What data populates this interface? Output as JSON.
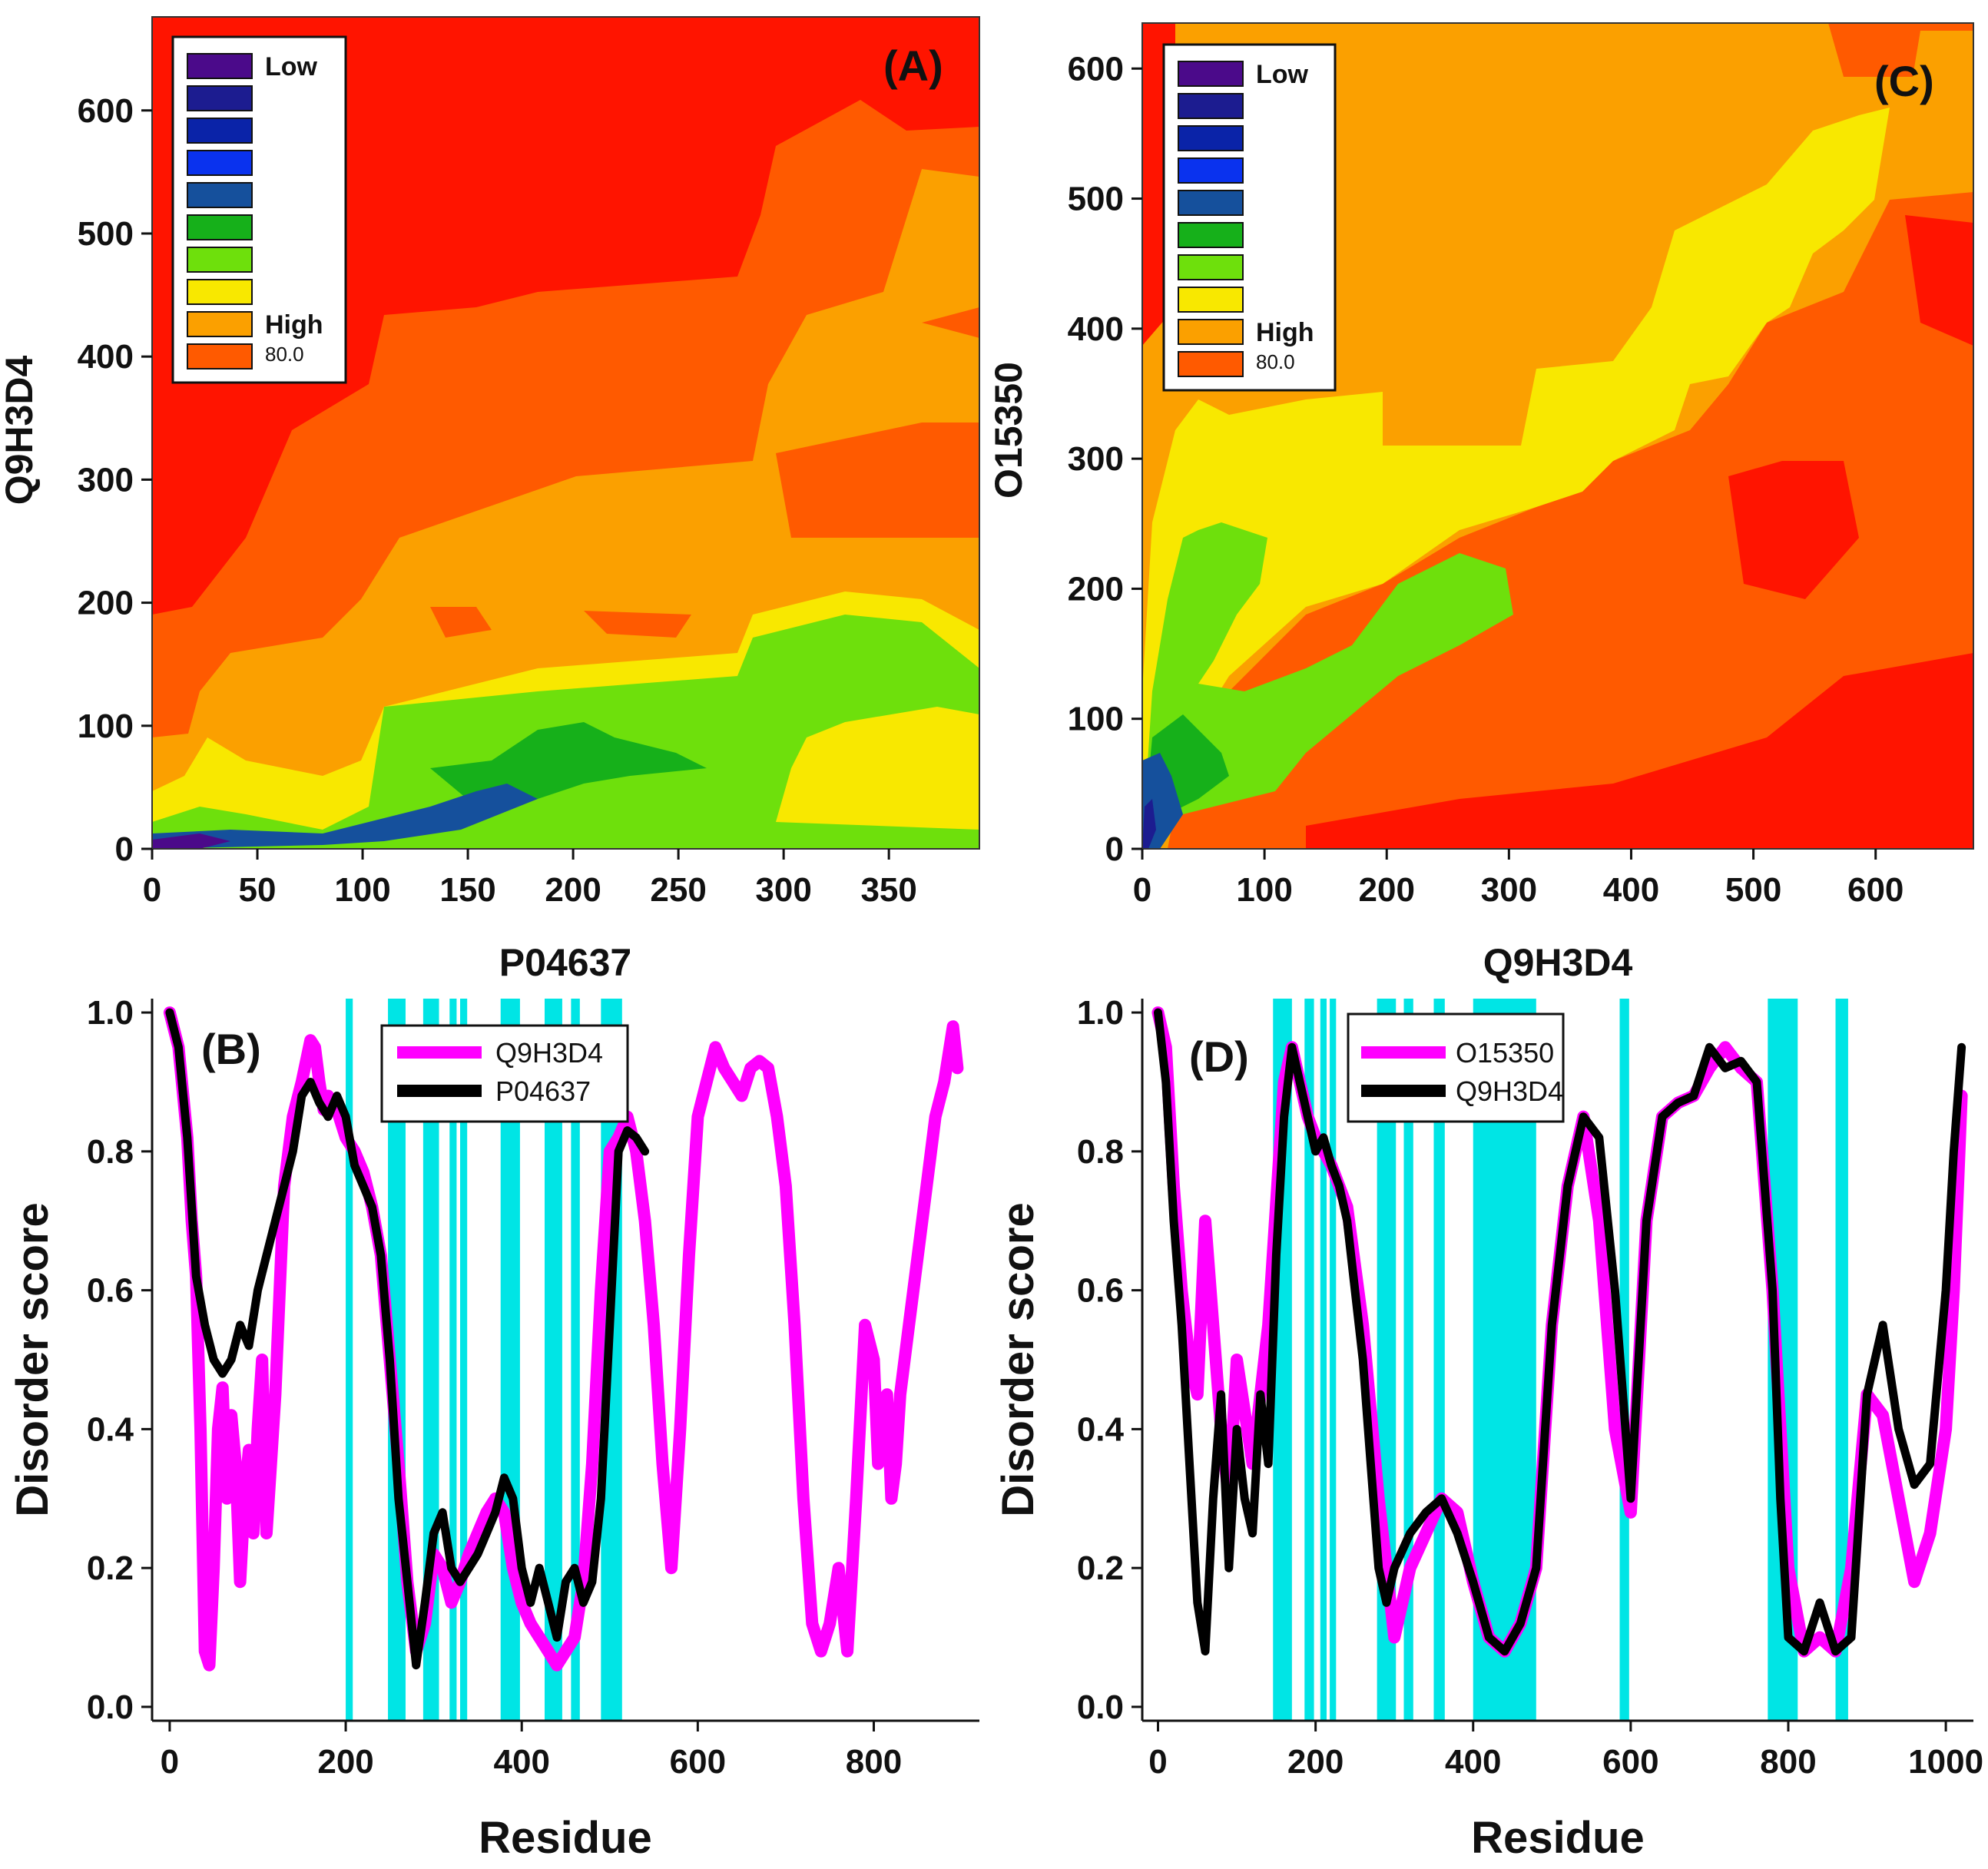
{
  "chart_data": [
    {
      "id": "A",
      "type": "heatmap",
      "panel_label": "(A)",
      "xlabel": "P04637",
      "ylabel": "Q9H3D4",
      "xlim": [
        0,
        393
      ],
      "ylim": [
        0,
        676
      ],
      "xticks": [
        0,
        50,
        100,
        150,
        200,
        250,
        300,
        350
      ],
      "yticks": [
        0,
        100,
        200,
        300,
        400,
        500,
        600
      ],
      "legend": [
        {
          "label": "Low",
          "color": "#4b0a8a"
        },
        {
          "label": "",
          "color": "#1c1c90"
        },
        {
          "label": "",
          "color": "#0a23a8"
        },
        {
          "label": "",
          "color": "#0a32ee"
        },
        {
          "label": "",
          "color": "#15509c"
        },
        {
          "label": "",
          "color": "#16b01a"
        },
        {
          "label": "",
          "color": "#6ee00c"
        },
        {
          "label": "",
          "color": "#f8e800"
        },
        {
          "label": "High",
          "color": "#fba000"
        },
        {
          "label": "80.0",
          "color": "#ff5a00"
        }
      ],
      "contours": [
        {
          "level": "orange",
          "color": "#fba000",
          "boundary": [
            [
              0,
              85
            ],
            [
              40,
              90
            ],
            [
              70,
              170
            ],
            [
              160,
              190
            ],
            [
              300,
              310
            ],
            [
              393,
              330
            ]
          ]
        },
        {
          "level": "yellow",
          "color": "#f8e800",
          "boundary": [
            [
              0,
              45
            ],
            [
              60,
              60
            ],
            [
              110,
              110
            ],
            [
              300,
              190
            ],
            [
              393,
              200
            ]
          ]
        },
        {
          "level": "green",
          "color": "#6ee00c",
          "boundary": [
            [
              0,
              25
            ],
            [
              100,
              20
            ],
            [
              120,
              115
            ],
            [
              300,
              185
            ],
            [
              393,
              140
            ]
          ]
        },
        {
          "level": "blue",
          "color": "#15509c",
          "boundary": [
            [
              0,
              10
            ],
            [
              100,
              8
            ],
            [
              150,
              45
            ],
            [
              180,
              40
            ]
          ]
        }
      ]
    },
    {
      "id": "C",
      "type": "heatmap",
      "panel_label": "(C)",
      "xlabel": "Q9H3D4",
      "ylabel": "O15350",
      "xlim": [
        0,
        680
      ],
      "ylim": [
        0,
        635
      ],
      "xticks": [
        0,
        100,
        200,
        300,
        400,
        500,
        600
      ],
      "yticks": [
        0,
        100,
        200,
        300,
        400,
        500,
        600
      ],
      "legend": [
        {
          "label": "Low",
          "color": "#4b0a8a"
        },
        {
          "label": "",
          "color": "#1c1c90"
        },
        {
          "label": "",
          "color": "#0a23a8"
        },
        {
          "label": "",
          "color": "#0a32ee"
        },
        {
          "label": "",
          "color": "#15509c"
        },
        {
          "label": "",
          "color": "#16b01a"
        },
        {
          "label": "",
          "color": "#6ee00c"
        },
        {
          "label": "",
          "color": "#f8e800"
        },
        {
          "label": "High",
          "color": "#fba000"
        },
        {
          "label": "80.0",
          "color": "#ff5a00"
        }
      ]
    },
    {
      "id": "B",
      "type": "line",
      "panel_label": "(B)",
      "xlabel": "Residue",
      "ylabel": "Disorder score",
      "xlim": [
        -20,
        920
      ],
      "ylim": [
        -0.02,
        1.02
      ],
      "xticks": [
        0,
        200,
        400,
        600,
        800
      ],
      "yticks": [
        "0.0",
        "0.2",
        "0.4",
        "0.6",
        "0.8",
        "1.0"
      ],
      "highlight_regions": [
        [
          200,
          208
        ],
        [
          248,
          268
        ],
        [
          288,
          306
        ],
        [
          318,
          326
        ],
        [
          330,
          338
        ],
        [
          376,
          398
        ],
        [
          426,
          446
        ],
        [
          456,
          466
        ],
        [
          490,
          514
        ]
      ],
      "series": [
        {
          "name": "Q9H3D4",
          "color": "#ff00ff",
          "x": [
            0,
            10,
            20,
            25,
            30,
            35,
            40,
            45,
            50,
            55,
            60,
            65,
            70,
            75,
            80,
            85,
            90,
            95,
            100,
            105,
            110,
            115,
            120,
            125,
            130,
            135,
            140,
            150,
            160,
            165,
            170,
            175,
            180,
            190,
            200,
            210,
            220,
            230,
            240,
            250,
            260,
            270,
            280,
            290,
            300,
            310,
            320,
            330,
            340,
            350,
            360,
            370,
            380,
            390,
            400,
            410,
            420,
            430,
            440,
            450,
            460,
            470,
            480,
            490,
            500,
            510,
            520,
            530,
            540,
            550,
            560,
            570,
            580,
            590,
            600,
            610,
            620,
            630,
            640,
            650,
            660,
            670,
            680,
            690,
            700,
            710,
            720,
            730,
            740,
            750,
            760,
            770,
            780,
            790,
            800,
            805,
            810,
            815,
            820,
            825,
            830,
            835,
            840,
            850,
            860,
            870,
            880,
            890,
            895
          ],
          "y": [
            1.0,
            0.95,
            0.82,
            0.7,
            0.62,
            0.4,
            0.08,
            0.06,
            0.2,
            0.4,
            0.46,
            0.3,
            0.42,
            0.35,
            0.18,
            0.3,
            0.37,
            0.25,
            0.4,
            0.5,
            0.25,
            0.35,
            0.45,
            0.6,
            0.75,
            0.8,
            0.85,
            0.9,
            0.96,
            0.95,
            0.9,
            0.86,
            0.88,
            0.86,
            0.82,
            0.8,
            0.77,
            0.72,
            0.65,
            0.5,
            0.35,
            0.18,
            0.08,
            0.12,
            0.22,
            0.2,
            0.15,
            0.18,
            0.22,
            0.25,
            0.28,
            0.3,
            0.28,
            0.2,
            0.15,
            0.12,
            0.1,
            0.08,
            0.06,
            0.08,
            0.1,
            0.18,
            0.35,
            0.6,
            0.8,
            0.82,
            0.85,
            0.8,
            0.7,
            0.55,
            0.35,
            0.2,
            0.4,
            0.65,
            0.85,
            0.9,
            0.95,
            0.92,
            0.9,
            0.88,
            0.92,
            0.93,
            0.92,
            0.85,
            0.75,
            0.55,
            0.3,
            0.12,
            0.08,
            0.12,
            0.2,
            0.08,
            0.3,
            0.55,
            0.5,
            0.35,
            0.4,
            0.45,
            0.3,
            0.35,
            0.45,
            0.5,
            0.55,
            0.65,
            0.75,
            0.85,
            0.9,
            0.98,
            0.92
          ]
        },
        {
          "name": "P04637",
          "color": "#000000",
          "x": [
            0,
            10,
            20,
            30,
            40,
            50,
            60,
            70,
            80,
            90,
            100,
            110,
            120,
            130,
            140,
            150,
            160,
            170,
            180,
            190,
            200,
            210,
            220,
            230,
            240,
            250,
            260,
            270,
            280,
            290,
            300,
            310,
            320,
            330,
            340,
            350,
            360,
            370,
            380,
            390,
            400,
            410,
            420,
            430,
            440,
            450,
            460,
            470,
            480,
            490,
            500,
            510,
            520,
            530,
            540
          ],
          "y": [
            1.0,
            0.95,
            0.82,
            0.62,
            0.55,
            0.5,
            0.48,
            0.5,
            0.55,
            0.52,
            0.6,
            0.65,
            0.7,
            0.75,
            0.8,
            0.88,
            0.9,
            0.87,
            0.85,
            0.88,
            0.85,
            0.78,
            0.75,
            0.72,
            0.65,
            0.5,
            0.3,
            0.18,
            0.06,
            0.15,
            0.25,
            0.28,
            0.2,
            0.18,
            0.2,
            0.22,
            0.25,
            0.28,
            0.33,
            0.3,
            0.2,
            0.15,
            0.2,
            0.15,
            0.1,
            0.18,
            0.2,
            0.15,
            0.18,
            0.3,
            0.55,
            0.8,
            0.83,
            0.82,
            0.8
          ]
        }
      ]
    },
    {
      "id": "D",
      "type": "line",
      "panel_label": "(D)",
      "xlabel": "Residue",
      "ylabel": "Disorder score",
      "xlim": [
        -20,
        1035
      ],
      "ylim": [
        -0.02,
        1.02
      ],
      "xticks": [
        0,
        200,
        400,
        600,
        800,
        1000
      ],
      "yticks": [
        "0.0",
        "0.2",
        "0.4",
        "0.6",
        "0.8",
        "1.0"
      ],
      "highlight_regions": [
        [
          146,
          170
        ],
        [
          186,
          198
        ],
        [
          206,
          214
        ],
        [
          218,
          226
        ],
        [
          278,
          302
        ],
        [
          312,
          324
        ],
        [
          350,
          364
        ],
        [
          400,
          480
        ],
        [
          586,
          598
        ],
        [
          774,
          812
        ],
        [
          860,
          876
        ]
      ],
      "series": [
        {
          "name": "O15350",
          "color": "#ff00ff",
          "x": [
            0,
            10,
            20,
            30,
            40,
            50,
            60,
            70,
            80,
            90,
            100,
            120,
            140,
            160,
            170,
            180,
            190,
            200,
            220,
            240,
            260,
            280,
            300,
            320,
            340,
            360,
            380,
            400,
            420,
            440,
            460,
            480,
            500,
            520,
            540,
            560,
            580,
            600,
            620,
            640,
            660,
            680,
            700,
            720,
            740,
            760,
            780,
            800,
            820,
            840,
            860,
            880,
            900,
            920,
            940,
            960,
            980,
            1000,
            1010,
            1020
          ],
          "y": [
            1.0,
            0.95,
            0.75,
            0.6,
            0.5,
            0.45,
            0.7,
            0.55,
            0.4,
            0.3,
            0.5,
            0.35,
            0.55,
            0.9,
            0.95,
            0.9,
            0.85,
            0.82,
            0.78,
            0.72,
            0.55,
            0.3,
            0.1,
            0.2,
            0.25,
            0.3,
            0.28,
            0.18,
            0.1,
            0.08,
            0.12,
            0.2,
            0.55,
            0.75,
            0.85,
            0.7,
            0.4,
            0.28,
            0.7,
            0.85,
            0.87,
            0.88,
            0.92,
            0.95,
            0.92,
            0.9,
            0.6,
            0.2,
            0.08,
            0.1,
            0.08,
            0.2,
            0.45,
            0.42,
            0.3,
            0.18,
            0.25,
            0.4,
            0.6,
            0.88
          ]
        },
        {
          "name": "Q9H3D4",
          "color": "#000000",
          "x": [
            0,
            10,
            20,
            30,
            40,
            50,
            60,
            70,
            80,
            90,
            100,
            110,
            120,
            130,
            140,
            150,
            160,
            170,
            180,
            190,
            200,
            210,
            220,
            230,
            240,
            250,
            260,
            270,
            280,
            290,
            300,
            320,
            340,
            360,
            380,
            400,
            420,
            440,
            460,
            480,
            500,
            520,
            540,
            560,
            580,
            600,
            620,
            640,
            660,
            680,
            700,
            720,
            740,
            760,
            780,
            790,
            800,
            820,
            840,
            860,
            880,
            900,
            920,
            940,
            960,
            980,
            1000,
            1010,
            1020
          ],
          "y": [
            1.0,
            0.9,
            0.7,
            0.55,
            0.35,
            0.15,
            0.08,
            0.3,
            0.45,
            0.2,
            0.4,
            0.3,
            0.25,
            0.45,
            0.35,
            0.65,
            0.85,
            0.95,
            0.9,
            0.85,
            0.8,
            0.82,
            0.78,
            0.75,
            0.7,
            0.6,
            0.5,
            0.35,
            0.2,
            0.15,
            0.2,
            0.25,
            0.28,
            0.3,
            0.25,
            0.18,
            0.1,
            0.08,
            0.12,
            0.2,
            0.55,
            0.75,
            0.85,
            0.82,
            0.6,
            0.3,
            0.7,
            0.85,
            0.87,
            0.88,
            0.95,
            0.92,
            0.93,
            0.9,
            0.6,
            0.3,
            0.1,
            0.08,
            0.15,
            0.08,
            0.1,
            0.45,
            0.55,
            0.4,
            0.32,
            0.35,
            0.6,
            0.8,
            0.95
          ]
        }
      ]
    }
  ]
}
